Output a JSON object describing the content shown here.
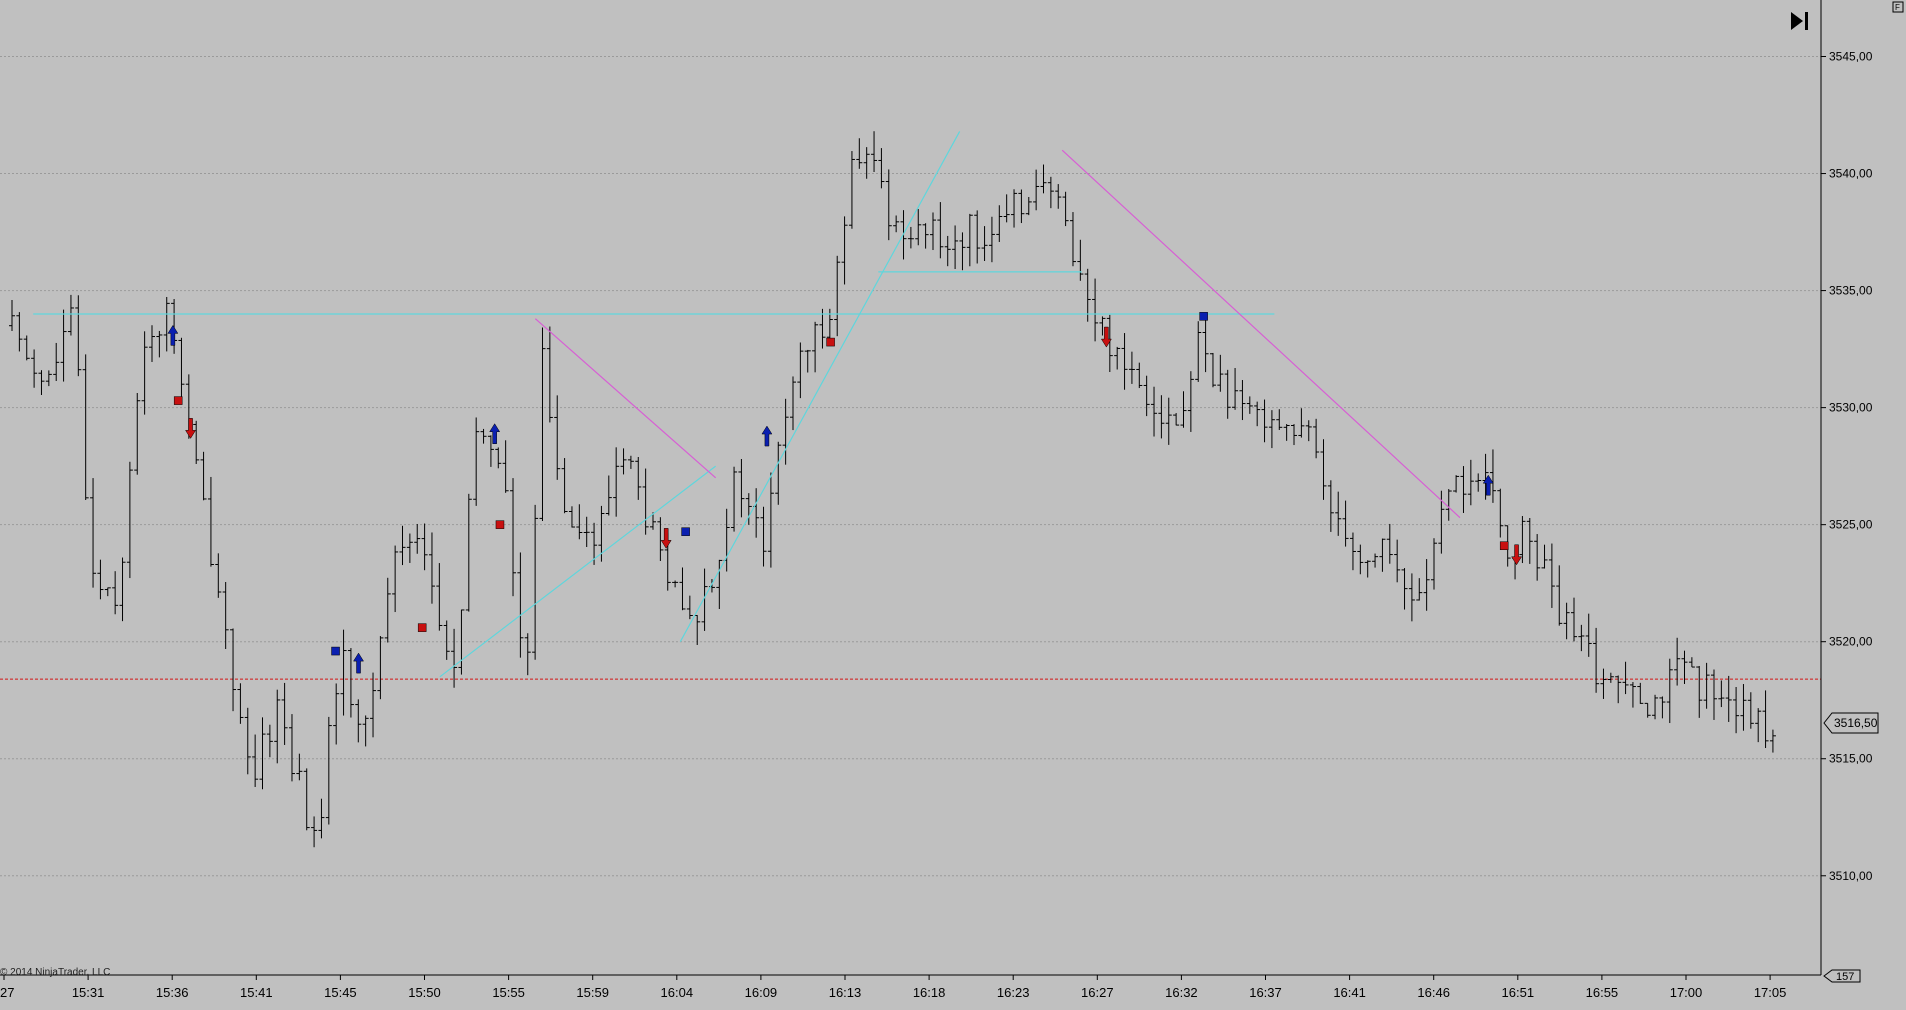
{
  "copyright": "2014 NinjaTrader, LLC",
  "corner_glyph": "F",
  "scroll_end_icon": "skip-to-end-icon",
  "last_price_label": "3516,50",
  "bar_count_label": "157",
  "colors": {
    "background": "#c0c0c0",
    "bars": "#000000",
    "grid": "#9a9a9a",
    "cyan_lines": "#5fd6dc",
    "magenta_lines": "#d75fd4",
    "price_line": "#d21414",
    "buy_marker": "#0a1fb0",
    "sell_marker": "#c81010"
  },
  "chart_data": {
    "type": "ohlc",
    "x_tick_labels": [
      "27",
      "15:31",
      "15:36",
      "15:41",
      "15:45",
      "15:50",
      "15:55",
      "15:59",
      "16:04",
      "16:09",
      "16:13",
      "16:18",
      "16:23",
      "16:27",
      "16:32",
      "16:37",
      "16:41",
      "16:46",
      "16:51",
      "16:55",
      "17:00",
      "17:05"
    ],
    "y_tick_labels": [
      "3510,00",
      "3515,00",
      "3520,00",
      "3525,00",
      "3530,00",
      "3535,00",
      "3540,00",
      "3545,00"
    ],
    "y_ticks": [
      3510,
      3515,
      3520,
      3525,
      3530,
      3535,
      3540,
      3545
    ],
    "ylim": [
      3506,
      3546.5
    ],
    "grid": true,
    "current_price": 3516.5,
    "price_line_level": 3518.4,
    "bar_count": 157,
    "last_bar_fraction": 0.996,
    "close_path": [
      [
        0.0,
        3533.5
      ],
      [
        0.02,
        3531.0
      ],
      [
        0.035,
        3534.0
      ],
      [
        0.045,
        3523.0
      ],
      [
        0.06,
        3522.0
      ],
      [
        0.075,
        3533.0
      ],
      [
        0.09,
        3534.0
      ],
      [
        0.1,
        3529.0
      ],
      [
        0.12,
        3521.0
      ],
      [
        0.135,
        3513.5
      ],
      [
        0.15,
        3517.5
      ],
      [
        0.172,
        3511.0
      ],
      [
        0.185,
        3519.5
      ],
      [
        0.2,
        3516.0
      ],
      [
        0.215,
        3523.5
      ],
      [
        0.23,
        3525.0
      ],
      [
        0.245,
        3519.5
      ],
      [
        0.252,
        3518.8
      ],
      [
        0.262,
        3529.0
      ],
      [
        0.277,
        3528.0
      ],
      [
        0.29,
        3517.5
      ],
      [
        0.3,
        3532.0
      ],
      [
        0.31,
        3526.5
      ],
      [
        0.33,
        3524.0
      ],
      [
        0.345,
        3528.5
      ],
      [
        0.36,
        3525.0
      ],
      [
        0.374,
        3522.0
      ],
      [
        0.384,
        3520.5
      ],
      [
        0.398,
        3523.5
      ],
      [
        0.41,
        3527.0
      ],
      [
        0.425,
        3524.0
      ],
      [
        0.44,
        3531.0
      ],
      [
        0.452,
        3532.5
      ],
      [
        0.465,
        3535.0
      ],
      [
        0.475,
        3540.0
      ],
      [
        0.487,
        3540.5
      ],
      [
        0.5,
        3537.5
      ],
      [
        0.51,
        3538.0
      ],
      [
        0.525,
        3537.0
      ],
      [
        0.54,
        3537.5
      ],
      [
        0.56,
        3537.5
      ],
      [
        0.575,
        3539.5
      ],
      [
        0.588,
        3539.0
      ],
      [
        0.6,
        3537.0
      ],
      [
        0.61,
        3534.0
      ],
      [
        0.625,
        3532.5
      ],
      [
        0.64,
        3531.0
      ],
      [
        0.66,
        3529.0
      ],
      [
        0.672,
        3533.0
      ],
      [
        0.68,
        3531.5
      ],
      [
        0.695,
        3529.5
      ],
      [
        0.71,
        3530.0
      ],
      [
        0.725,
        3529.0
      ],
      [
        0.735,
        3528.5
      ],
      [
        0.745,
        3526.0
      ],
      [
        0.755,
        3525.0
      ],
      [
        0.765,
        3523.0
      ],
      [
        0.775,
        3524.5
      ],
      [
        0.79,
        3521.5
      ],
      [
        0.8,
        3523.0
      ],
      [
        0.815,
        3526.5
      ],
      [
        0.823,
        3527.0
      ],
      [
        0.835,
        3526.5
      ],
      [
        0.845,
        3524.0
      ],
      [
        0.855,
        3524.5
      ],
      [
        0.865,
        3523.5
      ],
      [
        0.875,
        3521.0
      ],
      [
        0.885,
        3520.0
      ],
      [
        0.895,
        3519.0
      ],
      [
        0.905,
        3518.0
      ],
      [
        0.915,
        3519.0
      ],
      [
        0.925,
        3517.5
      ],
      [
        0.935,
        3518.0
      ],
      [
        0.945,
        3519.0
      ],
      [
        0.955,
        3517.5
      ],
      [
        0.965,
        3518.5
      ],
      [
        0.975,
        3517.0
      ],
      [
        0.985,
        3516.5
      ],
      [
        0.996,
        3516.5
      ]
    ],
    "trend_lines": [
      {
        "color": "cyan",
        "from": [
          0.012,
          3534.0
        ],
        "to": [
          0.714,
          3534.0
        ]
      },
      {
        "color": "cyan",
        "from": [
          0.242,
          3518.5
        ],
        "to": [
          0.398,
          3527.5
        ]
      },
      {
        "color": "cyan",
        "from": [
          0.378,
          3520.0
        ],
        "to": [
          0.536,
          3541.8
        ]
      },
      {
        "color": "cyan",
        "from": [
          0.49,
          3535.8
        ],
        "to": [
          0.605,
          3535.8
        ]
      },
      {
        "color": "magenta",
        "from": [
          0.296,
          3533.8
        ],
        "to": [
          0.398,
          3527.0
        ]
      },
      {
        "color": "magenta",
        "from": [
          0.594,
          3541.0
        ],
        "to": [
          0.819,
          3525.3
        ]
      }
    ],
    "signal_markers": [
      {
        "kind": "buy-square",
        "x": 0.183,
        "price": 3519.6
      },
      {
        "kind": "buy-arrow",
        "x": 0.196,
        "price": 3519.0
      },
      {
        "kind": "buy-arrow",
        "x": 0.091,
        "price": 3533.0
      },
      {
        "kind": "sell-square",
        "x": 0.094,
        "price": 3530.3
      },
      {
        "kind": "sell-arrow",
        "x": 0.101,
        "price": 3529.2
      },
      {
        "kind": "sell-square",
        "x": 0.232,
        "price": 3520.6
      },
      {
        "kind": "buy-arrow",
        "x": 0.273,
        "price": 3528.8
      },
      {
        "kind": "sell-square",
        "x": 0.276,
        "price": 3525.0
      },
      {
        "kind": "sell-arrow",
        "x": 0.37,
        "price": 3524.5
      },
      {
        "kind": "buy-square",
        "x": 0.381,
        "price": 3524.7
      },
      {
        "kind": "buy-arrow",
        "x": 0.427,
        "price": 3528.7
      },
      {
        "kind": "sell-square",
        "x": 0.463,
        "price": 3532.8
      },
      {
        "kind": "sell-arrow",
        "x": 0.619,
        "price": 3533.1
      },
      {
        "kind": "buy-square",
        "x": 0.674,
        "price": 3533.9
      },
      {
        "kind": "buy-arrow",
        "x": 0.835,
        "price": 3526.6
      },
      {
        "kind": "sell-square",
        "x": 0.844,
        "price": 3524.1
      },
      {
        "kind": "sell-arrow",
        "x": 0.851,
        "price": 3523.8
      }
    ]
  }
}
